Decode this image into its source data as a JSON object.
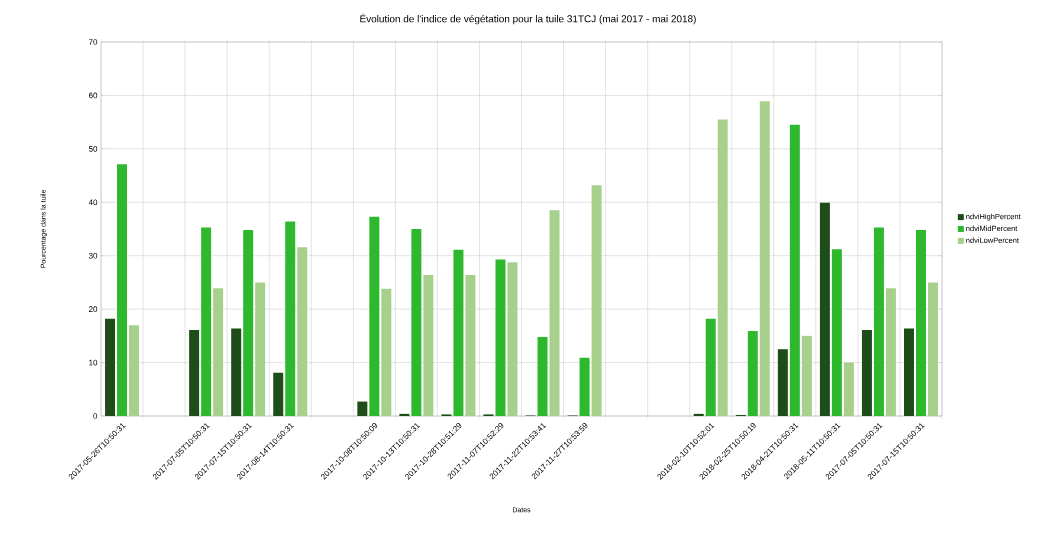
{
  "chart_data": {
    "type": "bar",
    "title": "Évolution de l'indice de végétation pour la tuile 31TCJ (mai 2017 - mai 2018)",
    "xlabel": "Dates",
    "ylabel": "Pourcentage dans la tuile",
    "categories": [
      "2017-05-26T10:50:31",
      null,
      "2017-07-05T10:50:31",
      "2017-07-15T10:50:31",
      "2017-08-14T10:50:31",
      null,
      "2017-10-08T10:50:09",
      "2017-10-13T10:50:31",
      "2017-10-28T10:51:29",
      "2017-11-07T10:52:29",
      "2017-11-22T10:53:41",
      "2017-11-27T10:53:59",
      null,
      null,
      "2018-02-10T10:52:01",
      "2018-02-25T10:50:19",
      "2018-04-21T10:50:31",
      "2018-05-11T10:50:31",
      "2017-07-05T10:50:31",
      "2017-07-15T10:50:31"
    ],
    "series": [
      {
        "name": "ndviHighPercent",
        "color": "#1e4d1a",
        "values": [
          18.2,
          null,
          16.1,
          16.4,
          8.1,
          null,
          2.7,
          0.4,
          0.3,
          0.3,
          0.1,
          0.1,
          null,
          null,
          0.4,
          0.2,
          12.5,
          39.9,
          16.1,
          16.4
        ]
      },
      {
        "name": "ndviMidPercent",
        "color": "#2eb82e",
        "values": [
          47.1,
          null,
          35.3,
          34.8,
          36.4,
          null,
          37.3,
          35.0,
          31.1,
          29.3,
          14.8,
          10.9,
          null,
          null,
          18.2,
          15.9,
          54.5,
          31.2,
          35.3,
          34.8
        ]
      },
      {
        "name": "ndviLowPercent",
        "color": "#a8d08d",
        "values": [
          17.0,
          null,
          23.9,
          25.0,
          31.6,
          null,
          23.8,
          26.4,
          26.4,
          28.8,
          38.5,
          43.2,
          null,
          null,
          55.5,
          58.9,
          15.0,
          10.0,
          23.9,
          25.0
        ]
      }
    ],
    "ylim": [
      0,
      70
    ],
    "yticks": [
      0,
      10,
      20,
      30,
      40,
      50,
      60,
      70
    ],
    "grid": true,
    "legend": "right"
  }
}
